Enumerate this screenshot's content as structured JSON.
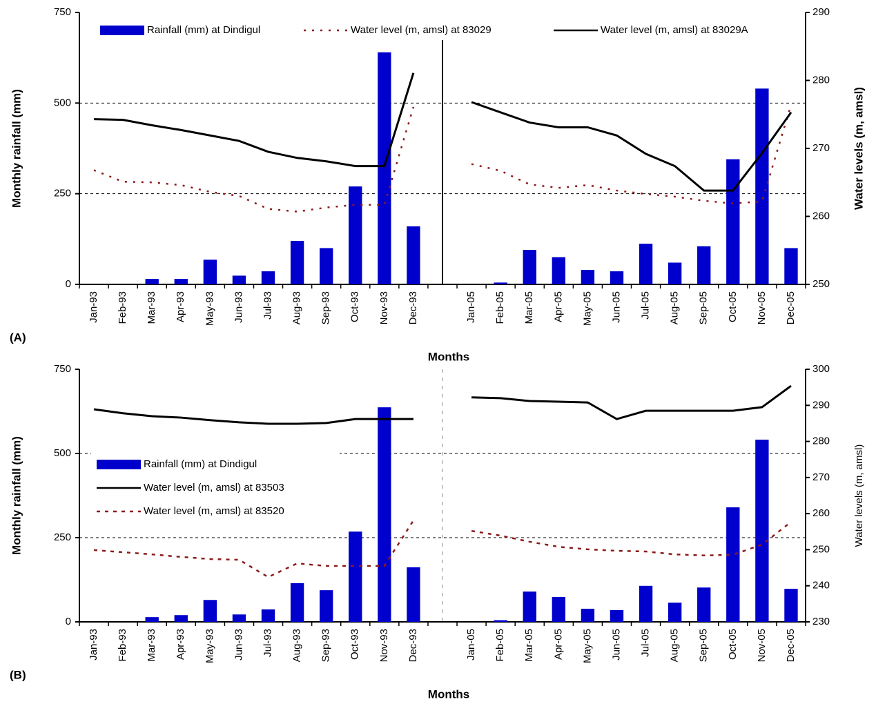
{
  "chart_data": [
    {
      "type": "bar-line",
      "panel_label": "(A)",
      "xlabel": "Months",
      "ylabel": "Monthly rainfall (mm)",
      "y2label": "Water levels (m, amsl)",
      "categories": [
        "Jan-93",
        "Feb-93",
        "Mar-93",
        "Apr-93",
        "May-93",
        "Jun-93",
        "Jul-93",
        "Aug-93",
        "Sep-93",
        "Oct-93",
        "Nov-93",
        "Dec-93",
        null,
        "Jan-05",
        "Feb-05",
        "Mar-05",
        "Apr-05",
        "May-05",
        "Jun-05",
        "Jul-05",
        "Aug-05",
        "Sep-05",
        "Oct-05",
        "Nov-05",
        "Dec-05"
      ],
      "ylim": [
        0,
        750
      ],
      "yticks": [
        0,
        250,
        500,
        750
      ],
      "y2lim": [
        250,
        290
      ],
      "y2ticks": [
        250,
        260,
        270,
        280,
        290
      ],
      "grid": [
        250,
        500
      ],
      "divider": "solid",
      "legend": "top",
      "series": [
        {
          "name": "Rainfall (mm) at Dindigul",
          "type": "bar",
          "color": "#0000cc",
          "values": [
            0,
            0,
            15,
            15,
            68,
            24,
            36,
            120,
            100,
            270,
            640,
            160,
            null,
            0,
            5,
            95,
            75,
            40,
            36,
            112,
            60,
            105,
            345,
            540,
            100
          ]
        },
        {
          "name": "Water level (m, amsl) at 83029",
          "type": "line",
          "axis": "y2",
          "color": "#8b1a1a",
          "style": "dotted",
          "values": [
            266.8,
            265.1,
            265.0,
            264.6,
            263.6,
            263.0,
            261.1,
            260.7,
            261.3,
            261.7,
            261.7,
            276.1,
            null,
            267.7,
            266.7,
            264.7,
            264.2,
            264.6,
            263.8,
            263.3,
            262.9,
            262.3,
            261.9,
            262.2,
            276.4
          ]
        },
        {
          "name": "Water level (m, amsl) at 83029A",
          "type": "line",
          "axis": "y2",
          "color": "#000000",
          "style": "solid",
          "values": [
            274.3,
            274.2,
            273.4,
            272.7,
            271.9,
            271.1,
            269.5,
            268.6,
            268.1,
            267.4,
            267.4,
            281.1,
            null,
            276.8,
            275.3,
            273.8,
            273.1,
            273.1,
            271.9,
            269.2,
            267.4,
            263.8,
            263.8,
            269.3,
            275.3
          ]
        }
      ]
    },
    {
      "type": "bar-line",
      "panel_label": "(B)",
      "xlabel": "Months",
      "ylabel": "Monthly rainfall (mm)",
      "y2label": "Water levels (m, amsl)",
      "categories": [
        "Jan-93",
        "Feb-93",
        "Mar-93",
        "Apr-93",
        "May-93",
        "Jun-93",
        "Jul-93",
        "Aug-93",
        "Sep-93",
        "Oct-93",
        "Nov-93",
        "Dec-93",
        null,
        "Jan-05",
        "Feb-05",
        "Mar-05",
        "Apr-05",
        "May-05",
        "Jun-05",
        "Jul-05",
        "Aug-05",
        "Sep-05",
        "Oct-05",
        "Nov-05",
        "Dec-05"
      ],
      "ylim": [
        0,
        750
      ],
      "yticks": [
        0,
        250,
        500,
        750
      ],
      "y2lim": [
        230,
        300
      ],
      "y2ticks": [
        230,
        240,
        250,
        260,
        270,
        280,
        290,
        300
      ],
      "grid": [
        250,
        500
      ],
      "divider": "dashed",
      "legend": "center-left",
      "series": [
        {
          "name": "Rainfall (mm) at Dindigul",
          "type": "bar",
          "color": "#0000cc",
          "values": [
            0,
            0,
            14,
            20,
            65,
            22,
            37,
            115,
            94,
            268,
            637,
            162,
            null,
            0,
            5,
            90,
            74,
            39,
            35,
            107,
            57,
            102,
            340,
            541,
            98
          ]
        },
        {
          "name": "Water level (m, amsl) at 83503",
          "type": "line",
          "axis": "y2",
          "color": "#000000",
          "style": "solid",
          "values": [
            288.9,
            287.8,
            287.0,
            286.6,
            285.9,
            285.3,
            284.9,
            284.9,
            285.1,
            286.2,
            286.2,
            286.2,
            null,
            292.2,
            292.0,
            291.2,
            291.0,
            290.8,
            286.2,
            288.5,
            288.5,
            288.5,
            288.5,
            289.5,
            295.4
          ]
        },
        {
          "name": "Water level (m, amsl) at 83520",
          "type": "line",
          "axis": "y2",
          "color": "#8b1a1a",
          "style": "dashed",
          "values": [
            249.9,
            249.3,
            248.7,
            248.0,
            247.4,
            247.2,
            242.4,
            246.2,
            245.5,
            245.5,
            245.5,
            258.1,
            null,
            255.2,
            253.9,
            252.2,
            250.8,
            250.1,
            249.7,
            249.5,
            248.7,
            248.4,
            248.6,
            251.4,
            257.7
          ]
        }
      ]
    }
  ]
}
